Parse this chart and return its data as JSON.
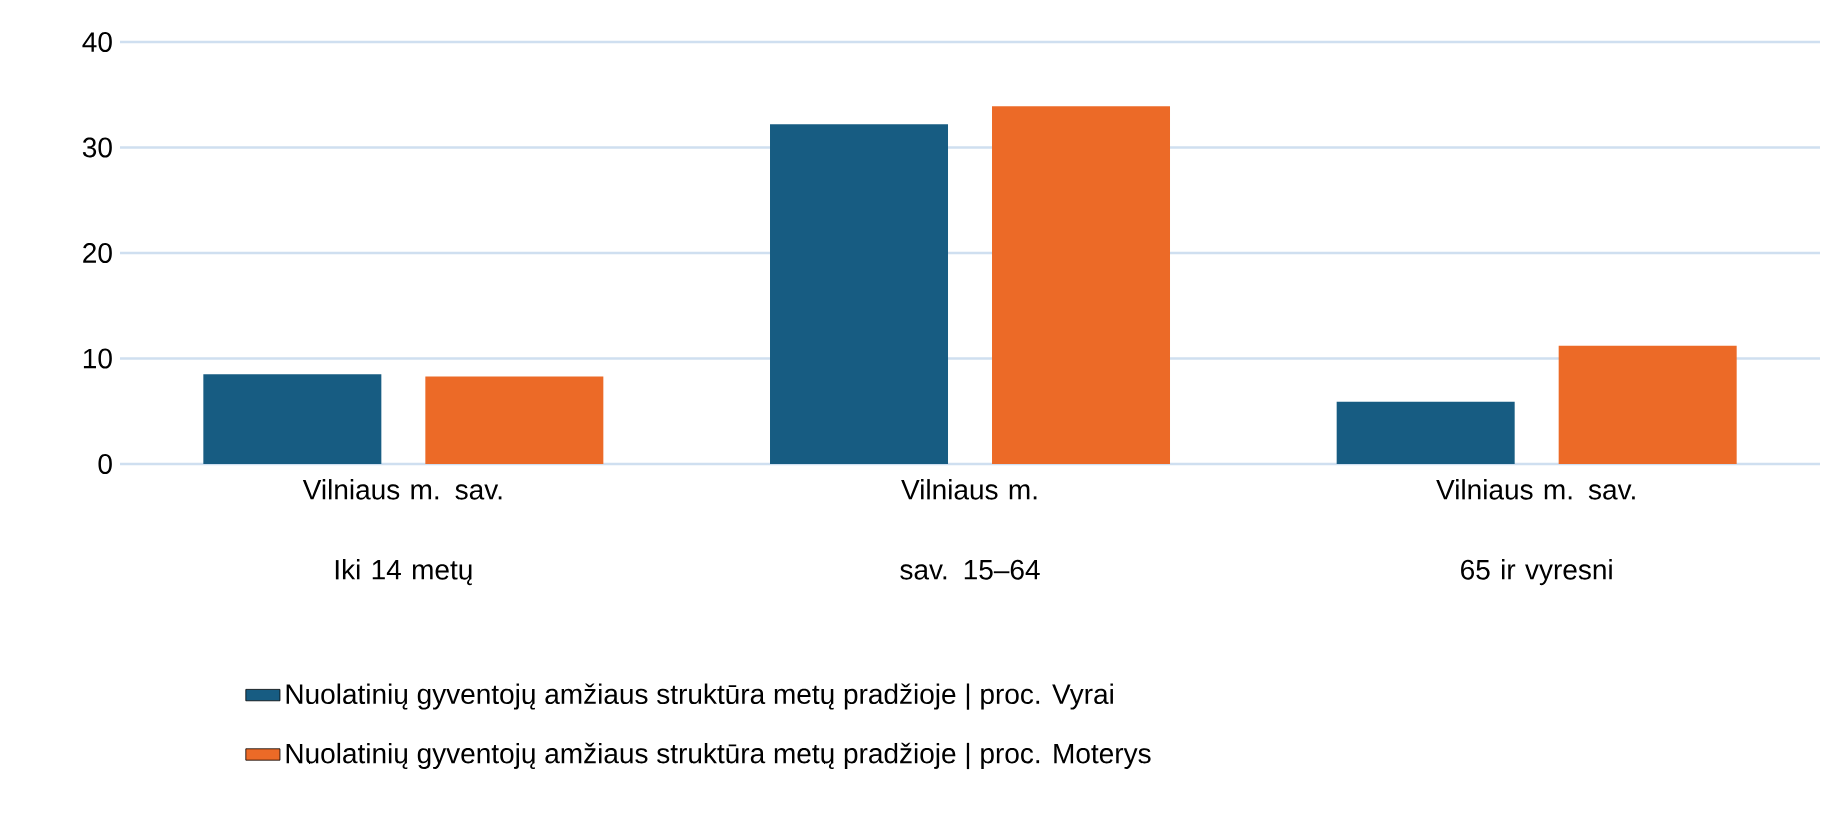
{
  "chart_data": {
    "type": "bar",
    "categories": [
      "Vilniaus m. sav. Iki 14 metų",
      "Vilniaus m. sav. 15–64",
      "Vilniaus m. sav. 65 ir vyresni"
    ],
    "series": [
      {
        "name": "Nuolatinių gyventojų amžiaus struktūra metų pradžioje | proc. Vyrai",
        "color": "#175c82",
        "values": [
          8.5,
          32.2,
          5.9
        ]
      },
      {
        "name": "Nuolatinių gyventojų amžiaus struktūra metų pradžioje | proc. Moterys",
        "color": "#ec6a27",
        "values": [
          8.3,
          33.9,
          11.2
        ]
      }
    ],
    "ylim": [
      0,
      40
    ],
    "yticks": [
      0,
      10,
      20,
      30,
      40
    ],
    "grid": "y",
    "legend": "bottom"
  }
}
